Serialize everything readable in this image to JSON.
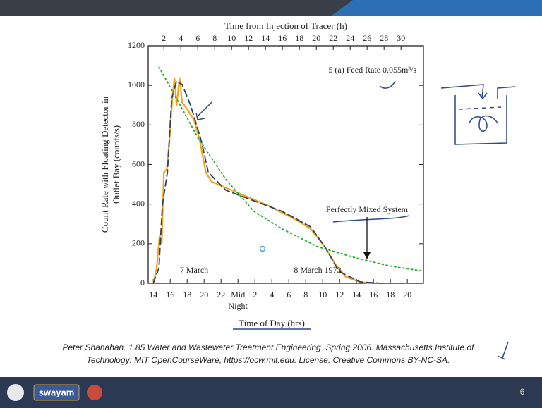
{
  "chart_data": {
    "type": "line",
    "top_axis_label": "Time from Injection of Tracer (h)",
    "xlabel": "Time of Day (hrs)",
    "ylabel": [
      "Count Rate with Floating Detector in",
      "Outlet Bay (counts/s)"
    ],
    "xlim": [
      13.4,
      45.9
    ],
    "xticks": [
      14,
      16,
      18,
      20,
      22,
      {
        "value": 24,
        "label": "Mid Night"
      },
      {
        "value": 26,
        "label": "2"
      },
      {
        "value": 28,
        "label": "4"
      },
      {
        "value": 30,
        "label": "6"
      },
      {
        "value": 32,
        "label": "8"
      },
      {
        "value": 34,
        "label": "10"
      },
      {
        "value": 36,
        "label": "12"
      },
      {
        "value": 38,
        "label": "14"
      },
      {
        "value": 40,
        "label": "16"
      },
      {
        "value": 42,
        "label": "18"
      },
      {
        "value": 44,
        "label": "20"
      }
    ],
    "x2lim": [
      0.15,
      32.65
    ],
    "x2ticks": [
      2,
      4,
      6,
      8,
      10,
      12,
      14,
      16,
      18,
      20,
      22,
      24,
      26,
      28,
      30
    ],
    "ylim": [
      0,
      1200
    ],
    "yticks": [
      0,
      200,
      400,
      600,
      800,
      1000,
      1200
    ],
    "annotations": [
      "5 (a) Feed Rate 0.055m³/s",
      "Perfectly Mixed System",
      "7 March",
      "8 March 1973"
    ],
    "series": [
      {
        "color": "#f5a31a",
        "style": "solid",
        "x": [
          14.0,
          14.4,
          14.75,
          15.0,
          15.25,
          15.6,
          15.9,
          16.25,
          16.5,
          16.75,
          17.1,
          17.4,
          18.0,
          18.8,
          19.5,
          20.2,
          20.9,
          24.25,
          27.6,
          30.9,
          32.6,
          34.25,
          35.5,
          36.75,
          38.4,
          39.7
        ],
        "values": [
          0,
          78,
          240,
          200,
          560,
          577,
          720,
          933,
          1040,
          897,
          1040,
          915,
          880,
          826,
          720,
          560,
          513,
          452,
          392,
          320,
          274,
          185,
          96,
          32,
          7,
          0
        ]
      },
      {
        "color": "#33415c",
        "style": "dashed",
        "x": [
          14.0,
          14.67,
          15.08,
          15.67,
          16.17,
          16.75,
          17.42,
          18.42,
          19.67,
          20.5,
          22.58,
          25.92,
          29.25,
          32.58,
          34.25,
          35.92,
          38.42,
          40.92
        ],
        "values": [
          0,
          78,
          399,
          559,
          933,
          1022,
          1004,
          897,
          720,
          560,
          470,
          416,
          363,
          285,
          185,
          60,
          7,
          0
        ]
      },
      {
        "color": "#22aa22",
        "style": "dotted",
        "x": [
          14.67,
          16.75,
          19.25,
          22.6,
          25.9,
          29.25,
          33.4,
          37.6,
          41.75,
          45.9
        ],
        "values": [
          1093,
          933,
          737,
          523,
          363,
          274,
          185,
          132,
          89,
          61
        ]
      }
    ]
  },
  "footer": {
    "citation": [
      "Peter Shanahan. 1.85 Water and Wastewater Treatment Engineering. Spring 2006. Massachusetts Institute of",
      "Technology: MIT OpenCourseWare, https://ocw.mit.edu. License: Creative Commons BY-NC-SA."
    ],
    "logo": "swayam",
    "page_number": "6"
  }
}
